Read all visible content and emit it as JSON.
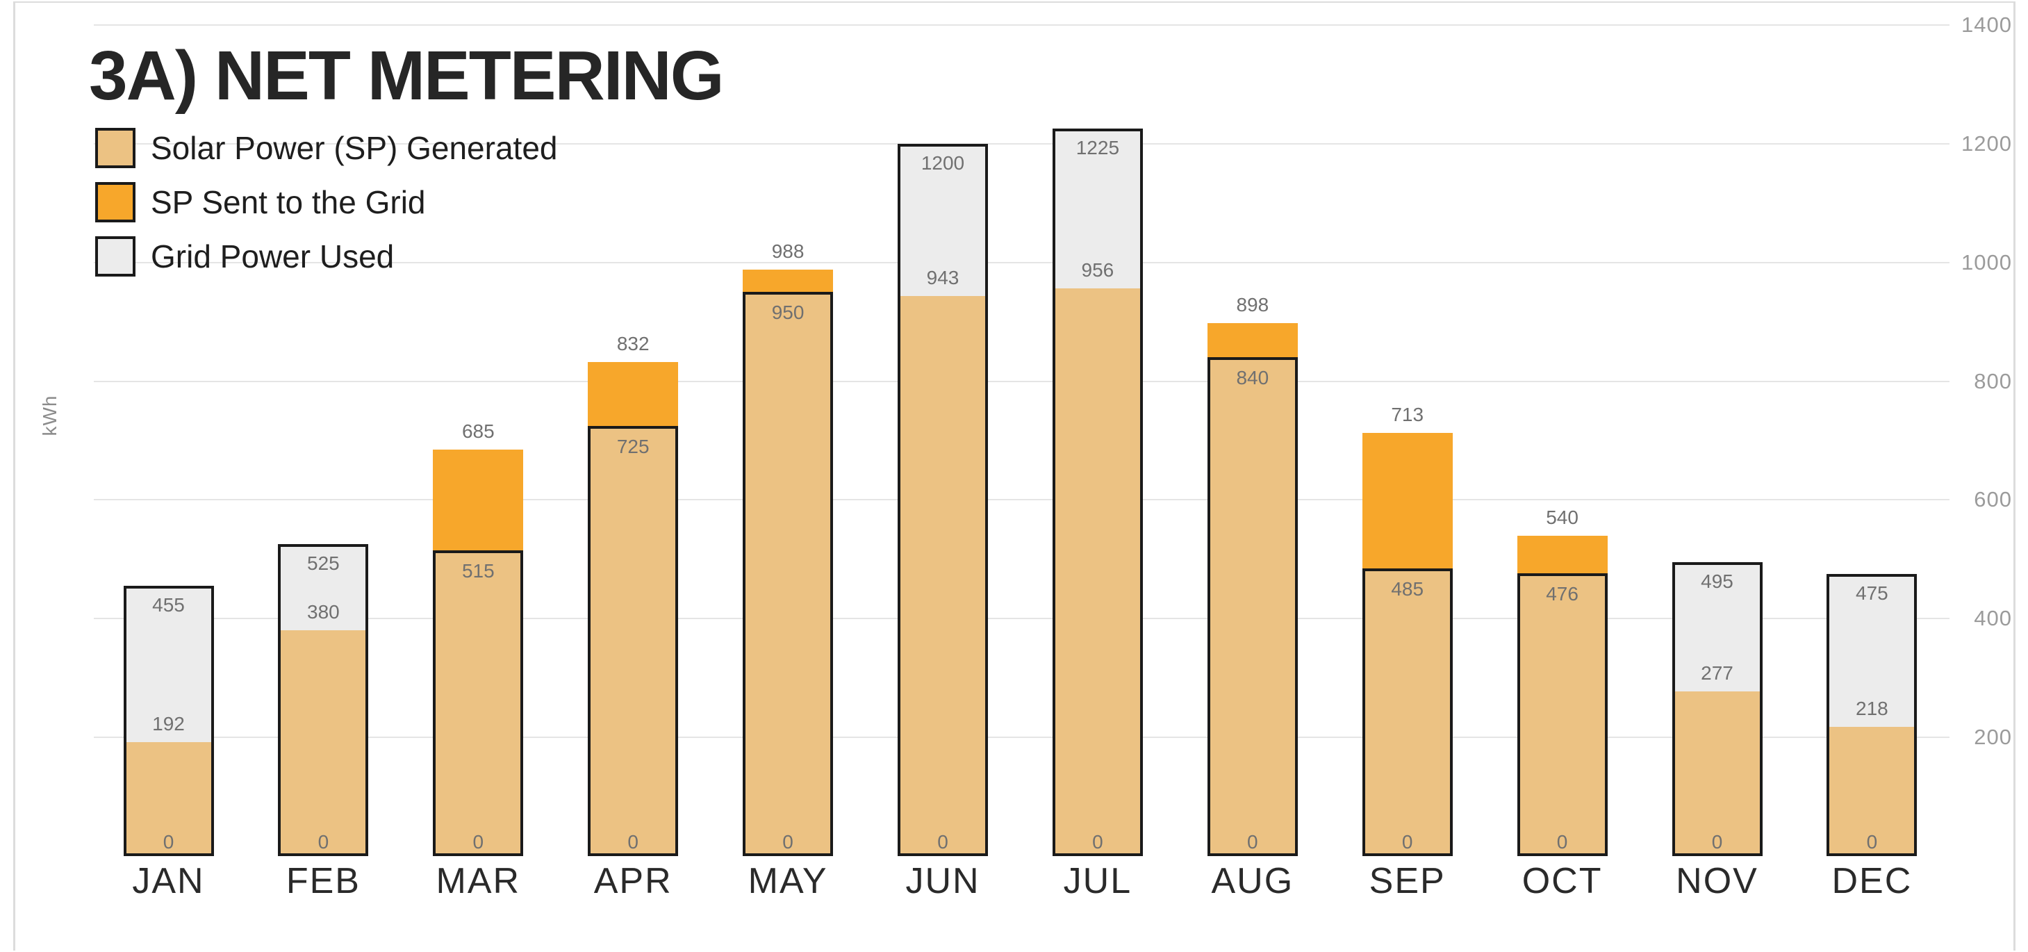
{
  "page": {
    "title": "3A) NET METERING",
    "ylabel": "kWh"
  },
  "legend": [
    {
      "label": "Solar Power (SP) Generated",
      "color": "#ECC283"
    },
    {
      "label": "SP Sent to the Grid",
      "color": "#F7A72B"
    },
    {
      "label": "Grid Power Used",
      "color": "#ECECEC"
    }
  ],
  "colors": {
    "solar_generated": "#ECC283",
    "sp_sent_to_grid": "#F7A72B",
    "grid_power_used": "#ECECEC",
    "bar_outline": "#1a1a1a",
    "gridline": "#e5e5e5",
    "value_label": "#707070",
    "axis_label": "#9b9b9b"
  },
  "chart_data": {
    "type": "bar",
    "stacked": true,
    "title": "3A) NET METERING",
    "ylabel": "kWh",
    "ylim": [
      0,
      1400
    ],
    "yticks": [
      200,
      400,
      600,
      800,
      1000,
      1200,
      1400
    ],
    "grid": true,
    "legend_position": "top-left",
    "zero_label": "0",
    "categories": [
      "JAN",
      "FEB",
      "MAR",
      "APR",
      "MAY",
      "JUN",
      "JUL",
      "AUG",
      "SEP",
      "OCT",
      "NOV",
      "DEC"
    ],
    "months": [
      {
        "month": "JAN",
        "solar_generated": 192,
        "bar_total": 455,
        "top_segment": "grid_power_used"
      },
      {
        "month": "FEB",
        "solar_generated": 380,
        "bar_total": 525,
        "top_segment": "grid_power_used"
      },
      {
        "month": "MAR",
        "solar_generated": 515,
        "bar_total": 685,
        "top_segment": "sp_sent_to_grid"
      },
      {
        "month": "APR",
        "solar_generated": 725,
        "bar_total": 832,
        "top_segment": "sp_sent_to_grid"
      },
      {
        "month": "MAY",
        "solar_generated": 950,
        "bar_total": 988,
        "top_segment": "sp_sent_to_grid"
      },
      {
        "month": "JUN",
        "solar_generated": 943,
        "bar_total": 1200,
        "top_segment": "grid_power_used"
      },
      {
        "month": "JUL",
        "solar_generated": 956,
        "bar_total": 1225,
        "top_segment": "grid_power_used"
      },
      {
        "month": "AUG",
        "solar_generated": 840,
        "bar_total": 898,
        "top_segment": "sp_sent_to_grid"
      },
      {
        "month": "SEP",
        "solar_generated": 485,
        "bar_total": 713,
        "top_segment": "sp_sent_to_grid"
      },
      {
        "month": "OCT",
        "solar_generated": 476,
        "bar_total": 540,
        "top_segment": "sp_sent_to_grid"
      },
      {
        "month": "NOV",
        "solar_generated": 277,
        "bar_total": 495,
        "top_segment": "grid_power_used"
      },
      {
        "month": "DEC",
        "solar_generated": 218,
        "bar_total": 475,
        "top_segment": "grid_power_used"
      }
    ],
    "series": [
      {
        "name": "Solar Power (SP) Generated",
        "values": [
          192,
          380,
          515,
          725,
          950,
          943,
          956,
          840,
          485,
          476,
          277,
          218
        ]
      },
      {
        "name": "SP Sent to the Grid",
        "values": [
          0,
          0,
          170,
          107,
          38,
          0,
          0,
          58,
          228,
          64,
          0,
          0
        ]
      },
      {
        "name": "Grid Power Used",
        "values": [
          263,
          145,
          0,
          0,
          0,
          257,
          269,
          0,
          0,
          0,
          218,
          257
        ]
      }
    ]
  }
}
